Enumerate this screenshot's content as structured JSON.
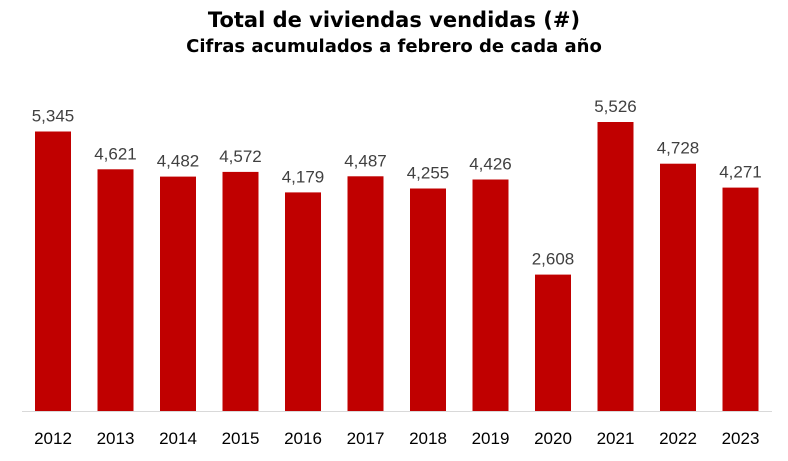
{
  "chart_data": {
    "type": "bar",
    "title": "Total de viviendas vendidas (#)",
    "subtitle": "Cifras acumulados a febrero de cada año",
    "categories": [
      "2012",
      "2013",
      "2014",
      "2015",
      "2016",
      "2017",
      "2018",
      "2019",
      "2020",
      "2021",
      "2022",
      "2023"
    ],
    "values": [
      5345,
      4621,
      4482,
      4572,
      4179,
      4487,
      4255,
      4426,
      2608,
      5526,
      4728,
      4271
    ],
    "value_labels": [
      "5,345",
      "4,621",
      "4,482",
      "4,572",
      "4,179",
      "4,487",
      "4,255",
      "4,426",
      "2,608",
      "5,526",
      "4,728",
      "4,271"
    ],
    "ylim": [
      0,
      5526
    ],
    "bar_color": "#C00000",
    "grid": false,
    "legend": "none"
  }
}
